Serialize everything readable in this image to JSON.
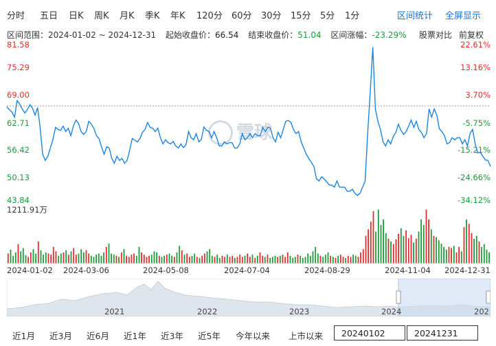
{
  "tabs": [
    "分时",
    "五日",
    "日K",
    "周K",
    "月K",
    "季K",
    "年K",
    "120分",
    "60分",
    "30分",
    "15分",
    "5分",
    "1分"
  ],
  "tools": {
    "range_stats": "区间统计",
    "fullscreen": "全屏显示"
  },
  "info": {
    "range_label": "区间范围：",
    "range_value": "2024-01-02 ~ 2024-12-31",
    "start_label": "起始收盘价：",
    "start_value": "66.54",
    "end_label": "结束收盘价：",
    "end_value": "51.04",
    "change_label": "区间涨幅：",
    "change_value": "-23.29%",
    "compare": "股票对比",
    "adjust": "前复权"
  },
  "watermark": "雪球",
  "price_axis": [
    "81.58",
    "75.29",
    "69.00",
    "62.71",
    "56.42",
    "50.13",
    "43.84"
  ],
  "pct_axis": [
    "22.61%",
    "13.16%",
    "3.70%",
    "-5.75%",
    "-15.21%",
    "-24.66%",
    "-34.12%"
  ],
  "volume_max": "1211.91万",
  "date_labels": [
    "2024-01-02",
    "2024-03-06",
    "2024-05-08",
    "2024-07-04",
    "2024-08-29",
    "2024-11-04",
    "2024-12-31"
  ],
  "overview_years": [
    "2021",
    "2022",
    "2023",
    "2024",
    "202"
  ],
  "bottom": {
    "ranges": [
      "近1月",
      "近3月",
      "近6月",
      "近1年",
      "近3年",
      "近5年",
      "今年以来",
      "上市以来"
    ],
    "start_date": "20240102",
    "end_date": "20241231"
  },
  "colors": {
    "line": "#1a85e0",
    "up": "#e22b2b",
    "down": "#1b9b3a",
    "link": "#1772d8"
  },
  "chart_data": {
    "type": "line",
    "price_range": [
      43.84,
      81.58
    ],
    "reference_close": 66.54,
    "x_labels": [
      "2024-01-02",
      "2024-03-06",
      "2024-05-08",
      "2024-07-04",
      "2024-08-29",
      "2024-11-04",
      "2024-12-31"
    ],
    "values": [
      66.5,
      65.8,
      65.2,
      64.0,
      68.0,
      67.2,
      66.0,
      65.0,
      65.8,
      67.0,
      66.2,
      64.5,
      66.3,
      61.5,
      55.0,
      53.5,
      54.5,
      56.5,
      58.5,
      61.5,
      61.0,
      60.8,
      61.8,
      60.5,
      61.3,
      59.5,
      61.8,
      63.3,
      62.5,
      60.5,
      59.8,
      60.5,
      63.0,
      62.3,
      61.3,
      59.5,
      58.8,
      56.8,
      55.0,
      56.8,
      56.5,
      54.0,
      52.8,
      54.5,
      53.5,
      54.0,
      52.8,
      53.5,
      56.0,
      58.8,
      58.4,
      58.0,
      58.8,
      60.3,
      61.0,
      62.7,
      61.5,
      61.3,
      60.5,
      61.3,
      59.0,
      57.5,
      58.5,
      57.8,
      57.5,
      58.1,
      57.0,
      56.5,
      57.5,
      56.6,
      57.3,
      60.5,
      59.0,
      58.5,
      60.0,
      58.0,
      58.6,
      61.6,
      60.8,
      60.5,
      59.0,
      60.5,
      59.0,
      57.0,
      57.0,
      58.0,
      57.5,
      57.8,
      57.8,
      56.5,
      56.5,
      57.5,
      60.0,
      58.5,
      59.0,
      60.0,
      59.0,
      60.0,
      59.5,
      59.5,
      61.5,
      60.5,
      61.5,
      61.3,
      59.0,
      58.0,
      60.3,
      59.0,
      61.0,
      63.0,
      63.2,
      62.7,
      61.0,
      60.0,
      60.5,
      58.0,
      56.5,
      55.0,
      54.0,
      53.0,
      52.0,
      49.0,
      48.5,
      49.5,
      49.0,
      48.3,
      47.5,
      47.5,
      47.0,
      48.5,
      47.0,
      47.0,
      47.0,
      46.0,
      46.0,
      46.5,
      45.5,
      45.0,
      45.5,
      47.0,
      48.5,
      60.0,
      70.0,
      81.0,
      66.0,
      63.0,
      61.0,
      58.0,
      57.0,
      58.5,
      57.5,
      59.3,
      60.3,
      62.3,
      60.8,
      59.8,
      60.5,
      61.8,
      63.3,
      61.5,
      63.0,
      61.0,
      60.3,
      59.0,
      60.0,
      66.0,
      64.0,
      66.0,
      64.5,
      61.2,
      60.5,
      59.5,
      57.5,
      57.8,
      59.0,
      58.5,
      59.0,
      59.0,
      57.5,
      58.5,
      57.0,
      60.0,
      61.0,
      57.5,
      55.3,
      55.5,
      54.5,
      53.6,
      53.5,
      52.0
    ],
    "volume_max_label": "1211.91万",
    "volume_ratios": [
      0.18,
      0.25,
      0.14,
      0.2,
      0.35,
      0.22,
      0.28,
      0.15,
      0.12,
      0.2,
      0.26,
      0.18,
      0.4,
      0.24,
      0.16,
      0.2,
      0.18,
      0.16,
      0.3,
      0.22,
      0.14,
      0.18,
      0.2,
      0.24,
      0.16,
      0.22,
      0.28,
      0.16,
      0.18,
      0.26,
      0.2,
      0.24,
      0.18,
      0.14,
      0.12,
      0.16,
      0.18,
      0.14,
      0.2,
      0.3,
      0.36,
      0.18,
      0.16,
      0.14,
      0.12,
      0.2,
      0.26,
      0.14,
      0.12,
      0.16,
      0.18,
      0.14,
      0.3,
      0.2,
      0.16,
      0.12,
      0.14,
      0.16,
      0.22,
      0.2,
      0.14,
      0.12,
      0.14,
      0.16,
      0.18,
      0.14,
      0.12,
      0.2,
      0.32,
      0.24,
      0.16,
      0.18,
      0.12,
      0.14,
      0.18,
      0.12,
      0.1,
      0.14,
      0.18,
      0.22,
      0.26,
      0.14,
      0.12,
      0.16,
      0.1,
      0.14,
      0.12,
      0.16,
      0.12,
      0.14,
      0.1,
      0.12,
      0.16,
      0.12,
      0.14,
      0.18,
      0.12,
      0.16,
      0.1,
      0.14,
      0.2,
      0.14,
      0.12,
      0.16,
      0.1,
      0.12,
      0.14,
      0.12,
      0.14,
      0.16,
      0.12,
      0.2,
      0.14,
      0.1,
      0.12,
      0.16,
      0.14,
      0.1,
      0.12,
      0.18,
      0.14,
      0.22,
      0.3,
      0.18,
      0.14,
      0.12,
      0.16,
      0.2,
      0.14,
      0.12,
      0.1,
      0.14,
      0.16,
      0.12,
      0.1,
      0.14,
      0.12,
      0.16,
      0.14,
      0.12,
      0.2,
      0.26,
      0.5,
      0.62,
      0.76,
      0.95,
      0.58,
      0.98,
      0.7,
      0.8,
      0.55,
      0.45,
      0.4,
      0.35,
      0.44,
      0.54,
      0.64,
      0.5,
      0.6,
      0.46,
      0.52,
      0.38,
      0.45,
      0.58,
      0.8,
      0.7,
      0.98,
      0.8,
      0.62,
      0.5,
      0.48,
      0.42,
      0.36,
      0.3,
      0.25,
      0.3,
      0.28,
      0.32,
      0.2,
      0.3,
      0.22,
      0.66,
      0.8,
      0.72,
      0.55,
      0.45,
      0.5,
      0.4,
      0.3,
      0.35,
      0.25,
      0.2
    ]
  }
}
